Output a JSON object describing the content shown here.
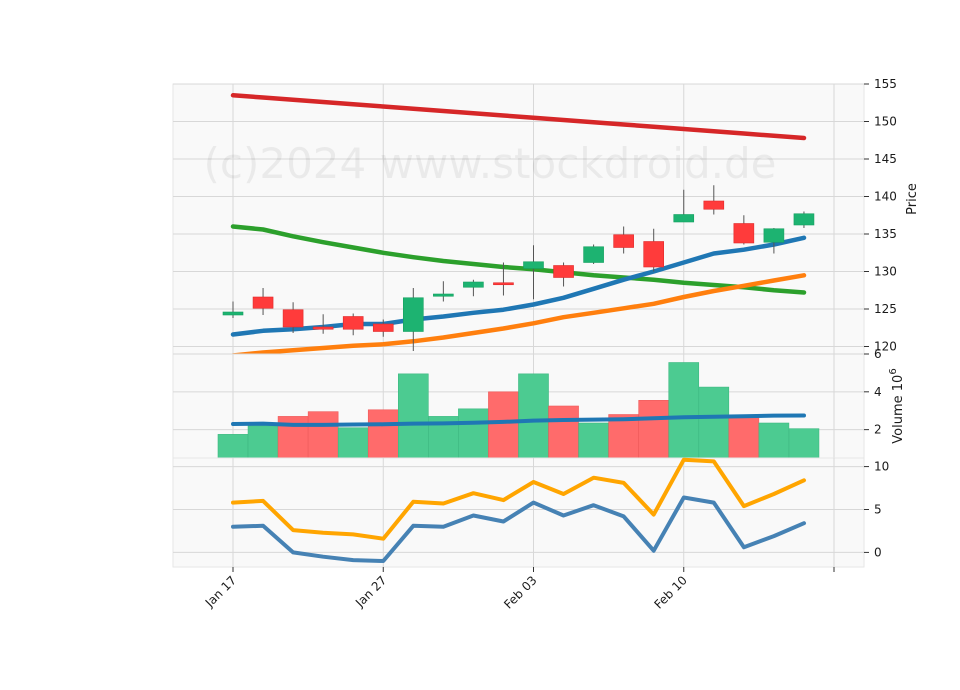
{
  "watermark": "(c)2024 www.stockdroid.de",
  "colors": {
    "up": "#1db371",
    "down": "#ff3b3b",
    "wick": "#555555",
    "grid": "#d8d8d8",
    "panel_bg": "#f9f9f9",
    "vol_up": "#4ccb91",
    "vol_down": "#ff6b6b"
  },
  "chart_data": [
    {
      "type": "candlestick",
      "panel": "price",
      "ylabel": "Price",
      "ylim": [
        119,
        155
      ],
      "yticks": [
        120,
        125,
        130,
        135,
        140,
        145,
        150,
        155
      ],
      "x_ticks": [
        {
          "index": 0,
          "label": "Jan 17"
        },
        {
          "index": 5,
          "label": "Jan 27"
        },
        {
          "index": 10,
          "label": "Feb 03"
        },
        {
          "index": 15,
          "label": "Feb 10"
        },
        {
          "index": 20,
          "label": ""
        }
      ],
      "candles": [
        {
          "o": 124.2,
          "h": 126.0,
          "l": 123.8,
          "c": 124.6
        },
        {
          "o": 126.6,
          "h": 127.8,
          "l": 124.2,
          "c": 125.1
        },
        {
          "o": 124.9,
          "h": 125.9,
          "l": 121.8,
          "c": 122.6
        },
        {
          "o": 122.6,
          "h": 124.3,
          "l": 121.7,
          "c": 122.3
        },
        {
          "o": 124.0,
          "h": 124.4,
          "l": 121.5,
          "c": 122.3
        },
        {
          "o": 123.0,
          "h": 123.6,
          "l": 121.3,
          "c": 122.0
        },
        {
          "o": 122.0,
          "h": 127.8,
          "l": 119.4,
          "c": 126.5
        },
        {
          "o": 126.7,
          "h": 128.7,
          "l": 126.0,
          "c": 127.0
        },
        {
          "o": 127.9,
          "h": 128.9,
          "l": 126.7,
          "c": 128.6
        },
        {
          "o": 128.5,
          "h": 131.2,
          "l": 126.8,
          "c": 128.3
        },
        {
          "o": 130.4,
          "h": 133.5,
          "l": 126.3,
          "c": 131.3
        },
        {
          "o": 130.8,
          "h": 131.2,
          "l": 128.0,
          "c": 129.2
        },
        {
          "o": 131.2,
          "h": 133.6,
          "l": 131.0,
          "c": 133.3
        },
        {
          "o": 134.9,
          "h": 136.0,
          "l": 132.4,
          "c": 133.2
        },
        {
          "o": 134.0,
          "h": 135.7,
          "l": 130.0,
          "c": 130.6
        },
        {
          "o": 136.6,
          "h": 140.9,
          "l": 136.6,
          "c": 137.6
        },
        {
          "o": 139.4,
          "h": 141.5,
          "l": 137.6,
          "c": 138.3
        },
        {
          "o": 136.4,
          "h": 137.5,
          "l": 133.6,
          "c": 133.8
        },
        {
          "o": 133.9,
          "h": 135.8,
          "l": 132.4,
          "c": 135.7
        },
        {
          "o": 136.2,
          "h": 138.0,
          "l": 135.8,
          "c": 137.7
        }
      ],
      "lines": [
        {
          "color": "#d62728",
          "width": 4.5,
          "values": [
            153.5,
            153.2,
            152.9,
            152.6,
            152.3,
            152.0,
            151.7,
            151.4,
            151.1,
            150.8,
            150.5,
            150.2,
            149.9,
            149.6,
            149.3,
            149.0,
            148.7,
            148.4,
            148.1,
            147.8
          ]
        },
        {
          "color": "#2ca02c",
          "width": 4.5,
          "values": [
            136.0,
            135.6,
            134.7,
            133.9,
            133.2,
            132.5,
            131.9,
            131.4,
            131.0,
            130.6,
            130.3,
            129.9,
            129.5,
            129.2,
            128.9,
            128.5,
            128.2,
            127.9,
            127.5,
            127.2
          ]
        },
        {
          "color": "#1f77b4",
          "width": 4.5,
          "values": [
            121.6,
            122.1,
            122.3,
            122.6,
            123.0,
            123.0,
            123.6,
            124.0,
            124.5,
            124.9,
            125.6,
            126.5,
            127.7,
            128.9,
            130.0,
            131.2,
            132.4,
            132.9,
            133.6,
            134.5
          ]
        },
        {
          "color": "#ff7f0e",
          "width": 4.5,
          "values": [
            118.8,
            119.2,
            119.5,
            119.8,
            120.1,
            120.3,
            120.7,
            121.2,
            121.8,
            122.4,
            123.1,
            123.9,
            124.5,
            125.1,
            125.7,
            126.6,
            127.4,
            128.1,
            128.8,
            129.5
          ]
        }
      ]
    },
    {
      "type": "bar",
      "panel": "volume",
      "ylabel": "Volume  10",
      "ylabel_exponent": "6",
      "ylim": [
        0.5,
        6.0
      ],
      "yticks": [
        2,
        4,
        6
      ],
      "values": [
        1.75,
        2.2,
        2.7,
        2.95,
        2.1,
        3.05,
        4.95,
        2.7,
        3.1,
        4.0,
        4.95,
        3.25,
        2.35,
        2.8,
        3.55,
        5.55,
        4.25,
        2.7,
        2.35,
        2.05
      ],
      "up": [
        true,
        true,
        false,
        false,
        true,
        false,
        true,
        true,
        true,
        false,
        true,
        false,
        true,
        false,
        false,
        true,
        true,
        false,
        true,
        true
      ],
      "line": {
        "color": "#1f77b4",
        "width": 4,
        "values": [
          2.3,
          2.32,
          2.25,
          2.25,
          2.27,
          2.28,
          2.32,
          2.33,
          2.36,
          2.41,
          2.48,
          2.51,
          2.53,
          2.55,
          2.6,
          2.65,
          2.68,
          2.71,
          2.74,
          2.75
        ]
      }
    },
    {
      "type": "line",
      "panel": "indicator",
      "ylim": [
        -1.7,
        11.0
      ],
      "yticks": [
        0,
        5,
        10
      ],
      "series": [
        {
          "color": "#ffa500",
          "width": 4,
          "values": [
            5.8,
            6.0,
            2.6,
            2.3,
            2.1,
            1.6,
            5.9,
            5.7,
            6.9,
            6.1,
            8.2,
            6.8,
            8.7,
            8.1,
            4.4,
            10.8,
            10.6,
            5.4,
            6.8,
            8.4
          ]
        },
        {
          "color": "#4682b4",
          "width": 4,
          "values": [
            3.0,
            3.1,
            0.0,
            -0.5,
            -0.9,
            -1.0,
            3.1,
            3.0,
            4.3,
            3.6,
            5.8,
            4.3,
            5.5,
            4.2,
            0.2,
            6.4,
            5.8,
            0.6,
            1.9,
            3.4
          ]
        }
      ]
    }
  ]
}
